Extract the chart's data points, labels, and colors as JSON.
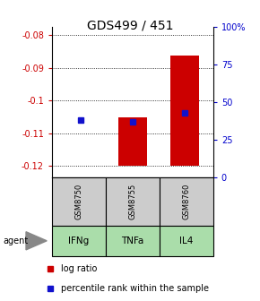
{
  "title": "GDS499 / 451",
  "samples": [
    "GSM8750",
    "GSM8755",
    "GSM8760"
  ],
  "agents": [
    "IFNg",
    "TNFa",
    "IL4"
  ],
  "log_ratios": [
    -0.1198,
    -0.1052,
    -0.0862
  ],
  "percentile_ranks": [
    38,
    37,
    43
  ],
  "baseline": -0.12,
  "ylim_left": [
    -0.1235,
    -0.0775
  ],
  "ylim_right": [
    0,
    100
  ],
  "yticks_left": [
    -0.12,
    -0.11,
    -0.1,
    -0.09,
    -0.08
  ],
  "ytick_labels_left": [
    "-0.12",
    "-0.11",
    "-0.1",
    "-0.09",
    "-0.08"
  ],
  "yticks_right": [
    0,
    25,
    50,
    75,
    100
  ],
  "ytick_labels_right": [
    "0",
    "25",
    "50",
    "75",
    "100%"
  ],
  "bar_color": "#cc0000",
  "dot_color": "#1111cc",
  "sample_bg": "#cccccc",
  "title_fontsize": 10,
  "axis_fontsize": 7,
  "legend_fontsize": 7,
  "agent_row_color": "#aaddaa",
  "tick_label_color_left": "#cc0000",
  "tick_label_color_right": "#0000cc"
}
